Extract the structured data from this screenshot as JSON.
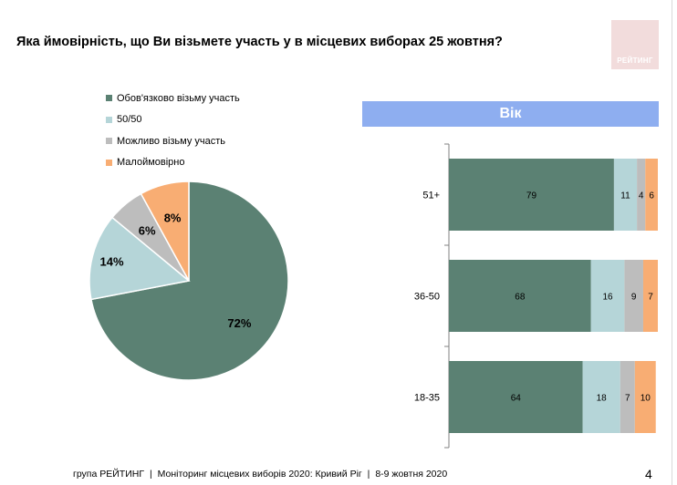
{
  "title": "Яка ймовірність, що Ви візьмете участь у в місцевих виборах 25 жовтня?",
  "logo": {
    "text": "РЕЙТИНГ",
    "color": "#f2dcdc"
  },
  "colors": {
    "definitely": "#5b8173",
    "fifty": "#b5d5d8",
    "maybe": "#bdbdbd",
    "unlikely": "#f8ad73",
    "panel_header": "#8eaef0"
  },
  "legend": [
    {
      "label": "Обов'язково візьму участь",
      "color": "#5b8173"
    },
    {
      "label": "50/50",
      "color": "#b5d5d8"
    },
    {
      "label": "Можливо візьму участь",
      "color": "#bdbdbd"
    },
    {
      "label": "Малоймовірно",
      "color": "#f8ad73"
    }
  ],
  "panel_header": "Вік",
  "chart_data": [
    {
      "type": "pie",
      "categories": [
        "Обов'язково візьму участь",
        "50/50",
        "Можливо візьму участь",
        "Малоймовірно"
      ],
      "values": [
        72,
        14,
        6,
        8
      ],
      "labels": [
        "72%",
        "14%",
        "6%",
        "8%"
      ],
      "colors": [
        "#5b8173",
        "#b5d5d8",
        "#bdbdbd",
        "#f8ad73"
      ],
      "start_angle_deg": 0,
      "direction": "clockwise",
      "legend_position": "top-left"
    },
    {
      "type": "bar",
      "orientation": "horizontal",
      "stacked": true,
      "title": "Вік",
      "categories": [
        "51+",
        "36-50",
        "18-35"
      ],
      "series": [
        {
          "name": "Обов'язково візьму участь",
          "values": [
            79,
            68,
            64
          ],
          "color": "#5b8173"
        },
        {
          "name": "50/50",
          "values": [
            11,
            16,
            18
          ],
          "color": "#b5d5d8"
        },
        {
          "name": "Можливо візьму участь",
          "values": [
            4,
            9,
            7
          ],
          "color": "#bdbdbd"
        },
        {
          "name": "Малоймовірно",
          "values": [
            6,
            7,
            10
          ],
          "color": "#f8ad73"
        }
      ],
      "xlim": [
        0,
        100
      ],
      "grid": false
    }
  ],
  "footer": {
    "org": "група РЕЙТИНГ",
    "project": "Моніторинг місцевих виборів 2020: Кривий Ріг",
    "dates": "8-9 жовтня 2020",
    "separator": "|"
  },
  "page_number": "4"
}
